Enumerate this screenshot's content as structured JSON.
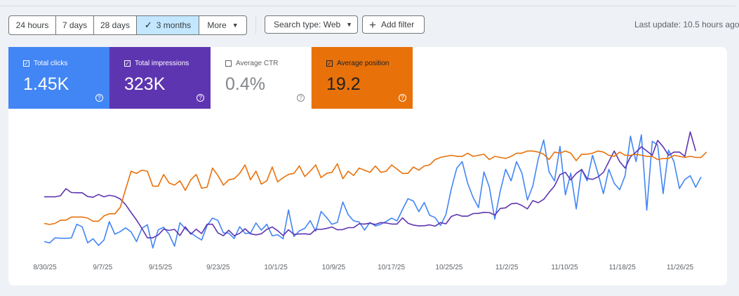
{
  "filters": {
    "ranges": [
      "24 hours",
      "7 days",
      "28 days",
      "3 months"
    ],
    "selected_range": "3 months",
    "more_label": "More",
    "search_type_label": "Search type: Web",
    "add_filter_label": "Add filter",
    "last_update": "Last update: 10.5 hours ago"
  },
  "metrics": [
    {
      "label": "Total clicks",
      "value": "1.45K",
      "checked": true,
      "color": "#4285f4"
    },
    {
      "label": "Total impressions",
      "value": "323K",
      "checked": true,
      "color": "#5e35b1"
    },
    {
      "label": "Average CTR",
      "value": "0.4%",
      "checked": false,
      "color": "#00897b"
    },
    {
      "label": "Average position",
      "value": "19.2",
      "checked": true,
      "color": "#e8710a"
    }
  ],
  "chart_data": {
    "type": "line",
    "x_tick_labels": [
      "8/30/25",
      "9/7/25",
      "9/15/25",
      "9/23/25",
      "10/1/25",
      "10/9/25",
      "10/17/25",
      "10/25/25",
      "11/2/25",
      "11/10/25",
      "11/18/25",
      "11/26/25"
    ],
    "x_start": "8/30/25",
    "x_end": "11/30/25",
    "grid": false,
    "series": [
      {
        "name": "Total clicks",
        "color": "#4285f4",
        "values": [
          6.2,
          5.7,
          7.7,
          7.5,
          7.5,
          7.6,
          13,
          12,
          5.7,
          7.3,
          4.7,
          6.8,
          14,
          9.1,
          10.1,
          11.6,
          10,
          6.2,
          11.4,
          12.8,
          3.7,
          10.8,
          11.8,
          9.1,
          4.4,
          13.6,
          11.2,
          9.6,
          8.1,
          6.8,
          12.5,
          15.4,
          14.5,
          9.6,
          9.5,
          7.4,
          12,
          9.4,
          9.5,
          13.5,
          10.7,
          13,
          8.5,
          8.9,
          7.3,
          18.6,
          8.2,
          10.4,
          11.4,
          14.4,
          10.3,
          18,
          15.7,
          13,
          13.7,
          21.7,
          16.7,
          14.3,
          13.9,
          10.7,
          13.7,
          12.3,
          13,
          14.1,
          15.4,
          14.3,
          18.8,
          23,
          22.1,
          17.9,
          21.5,
          16.5,
          15.6,
          12.5,
          16.8,
          27,
          35,
          37.5,
          29,
          23.5,
          19.5,
          33.5,
          27.5,
          15,
          26,
          34.5,
          30,
          37.5,
          33,
          22.5,
          28,
          38.5,
          46,
          33.5,
          30,
          43.5,
          24.5,
          33,
          19,
          34.5,
          30,
          40,
          33,
          25,
          34.5,
          29,
          26.5,
          32,
          47.5,
          37.5,
          48,
          18.5,
          45.5,
          44,
          25,
          42,
          37.5,
          27,
          30.5,
          32,
          27.5,
          31.5
        ],
        "y_min": 0,
        "y_max": 50
      },
      {
        "name": "Total impressions",
        "color": "#5e35b1",
        "values": [
          2850,
          2850,
          2850,
          2900,
          3230,
          3050,
          3040,
          3040,
          2860,
          2830,
          2960,
          2850,
          2920,
          2870,
          2750,
          2480,
          2110,
          1760,
          1360,
          920,
          920,
          1050,
          1330,
          1270,
          1320,
          1030,
          1440,
          1090,
          1330,
          1120,
          1560,
          1560,
          1150,
          1020,
          1280,
          1020,
          1130,
          1350,
          1110,
          1060,
          1110,
          1320,
          1430,
          1260,
          1030,
          1300,
          1080,
          1100,
          1110,
          1080,
          1320,
          1320,
          1360,
          1430,
          1300,
          1310,
          1400,
          1400,
          1580,
          1570,
          1610,
          1550,
          1640,
          1620,
          1570,
          1570,
          1860,
          1610,
          1520,
          1480,
          1490,
          1530,
          1470,
          1640,
          1580,
          1930,
          2020,
          1940,
          1940,
          2060,
          2070,
          2120,
          2110,
          1990,
          2300,
          2330,
          2520,
          2550,
          2440,
          2280,
          2670,
          2570,
          2730,
          3060,
          3360,
          3890,
          4000,
          3640,
          3950,
          4130,
          3710,
          3670,
          3780,
          4000,
          4500,
          5000,
          4500,
          4200,
          4730,
          4950,
          5200,
          5000,
          4800,
          5500,
          5200,
          4800,
          4950,
          4950,
          4750,
          5900,
          5000
        ],
        "y_min": 0,
        "y_max": 6000
      },
      {
        "name": "Average position",
        "color": "#e8710a",
        "values": [
          49,
          49.5,
          49,
          47.5,
          47.5,
          46,
          46,
          46,
          46.5,
          48,
          48,
          45.5,
          44.5,
          44.5,
          41.5,
          33,
          24.5,
          25.5,
          24,
          24.5,
          31.5,
          31.5,
          26,
          30,
          31,
          29,
          33.5,
          28.5,
          26,
          32.5,
          32,
          23,
          26.5,
          31,
          28.5,
          28,
          25.5,
          21.5,
          28.5,
          24.5,
          30.5,
          29,
          22.5,
          29.5,
          27.5,
          26,
          25.5,
          22,
          27,
          24.5,
          21.5,
          27.5,
          25.5,
          25,
          21,
          28,
          24.5,
          26.5,
          23,
          24,
          25,
          22,
          25,
          24.5,
          21.5,
          23.5,
          25.5,
          25.5,
          22.5,
          24,
          22,
          21.5,
          19,
          18,
          17.5,
          17,
          17.5,
          17.5,
          16,
          17.5,
          17,
          16.5,
          19,
          17.5,
          18,
          18.5,
          17.5,
          16,
          16,
          15,
          15,
          15.5,
          16.5,
          19,
          15.5,
          16,
          15,
          16,
          19.5,
          16.5,
          16.5,
          16,
          15,
          15.5,
          17,
          17.5,
          15.5,
          17,
          17,
          16.5,
          17,
          17.5,
          17.5,
          19,
          18.5,
          18.5,
          17,
          17.5,
          18,
          17.5,
          18,
          18,
          15.5
        ],
        "y_min": 5,
        "y_max": 65,
        "y_inverted": true
      }
    ]
  }
}
